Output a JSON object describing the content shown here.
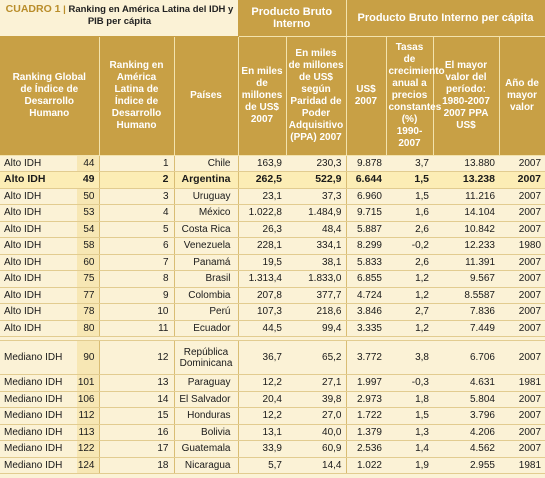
{
  "title": {
    "label": "CUADRO 1",
    "text": "Ranking en América Latina del IDH y PIB per cápita"
  },
  "headers": {
    "pib": "Producto Bruto Interno",
    "pib_pc": "Producto Bruto Interno per cápita",
    "ranking_global": "Ranking Global de Índice de Desarrollo Humano",
    "ranking_al": "Ranking en América Latina de Índice de Desarrollo Humano",
    "paises": "Países",
    "pib_millones": "En miles de millones de US$ 2007",
    "pib_ppa": "En miles de millones de US$ según Paridad de Poder Adquisitivo (PPA) 2007",
    "us2007": "US$ 2007",
    "tasas": "Tasas de crecimiento anual a precios constantes (%) 1990-2007",
    "mayor": "El mayor valor del período: 1980-2007 2007 PPA US$",
    "anio": "Año de mayor valor"
  },
  "rows_alto": [
    {
      "nivel": "Alto IDH",
      "rg": "44",
      "ral": "1",
      "pais": "Chile",
      "pib": "163,9",
      "ppa": "230,3",
      "us": "9.878",
      "tasa": "3,7",
      "mayor": "13.880",
      "anio": "2007"
    },
    {
      "nivel": "Alto IDH",
      "rg": "49",
      "ral": "2",
      "pais": "Argentina",
      "pib": "262,5",
      "ppa": "522,9",
      "us": "6.644",
      "tasa": "1,5",
      "mayor": "13.238",
      "anio": "2007",
      "highlight": true
    },
    {
      "nivel": "Alto IDH",
      "rg": "50",
      "ral": "3",
      "pais": "Uruguay",
      "pib": "23,1",
      "ppa": "37,3",
      "us": "6.960",
      "tasa": "1,5",
      "mayor": "11.216",
      "anio": "2007"
    },
    {
      "nivel": "Alto IDH",
      "rg": "53",
      "ral": "4",
      "pais": "México",
      "pib": "1.022,8",
      "ppa": "1.484,9",
      "us": "9.715",
      "tasa": "1,6",
      "mayor": "14.104",
      "anio": "2007"
    },
    {
      "nivel": "Alto IDH",
      "rg": "54",
      "ral": "5",
      "pais": "Costa Rica",
      "pib": "26,3",
      "ppa": "48,4",
      "us": "5.887",
      "tasa": "2,6",
      "mayor": "10.842",
      "anio": "2007"
    },
    {
      "nivel": "Alto IDH",
      "rg": "58",
      "ral": "6",
      "pais": "Venezuela",
      "pib": "228,1",
      "ppa": "334,1",
      "us": "8.299",
      "tasa": "-0,2",
      "mayor": "12.233",
      "anio": "1980"
    },
    {
      "nivel": "Alto IDH",
      "rg": "60",
      "ral": "7",
      "pais": "Panamá",
      "pib": "19,5",
      "ppa": "38,1",
      "us": "5.833",
      "tasa": "2,6",
      "mayor": "11.391",
      "anio": "2007"
    },
    {
      "nivel": "Alto IDH",
      "rg": "75",
      "ral": "8",
      "pais": "Brasil",
      "pib": "1.313,4",
      "ppa": "1.833,0",
      "us": "6.855",
      "tasa": "1,2",
      "mayor": "9.567",
      "anio": "2007"
    },
    {
      "nivel": "Alto IDH",
      "rg": "77",
      "ral": "9",
      "pais": "Colombia",
      "pib": "207,8",
      "ppa": "377,7",
      "us": "4.724",
      "tasa": "1,2",
      "mayor": "8.5587",
      "anio": "2007"
    },
    {
      "nivel": "Alto IDH",
      "rg": "78",
      "ral": "10",
      "pais": "Perú",
      "pib": "107,3",
      "ppa": "218,6",
      "us": "3.846",
      "tasa": "2,7",
      "mayor": "7.836",
      "anio": "2007"
    },
    {
      "nivel": "Alto IDH",
      "rg": "80",
      "ral": "11",
      "pais": "Ecuador",
      "pib": "44,5",
      "ppa": "99,4",
      "us": "3.335",
      "tasa": "1,2",
      "mayor": "7.449",
      "anio": "2007"
    }
  ],
  "rows_mediano": [
    {
      "nivel": "Mediano IDH",
      "rg": "90",
      "ral": "12",
      "pais": "República Dominicana",
      "pib": "36,7",
      "ppa": "65,2",
      "us": "3.772",
      "tasa": "3,8",
      "mayor": "6.706",
      "anio": "2007"
    },
    {
      "nivel": "Mediano IDH",
      "rg": "101",
      "ral": "13",
      "pais": "Paraguay",
      "pib": "12,2",
      "ppa": "27,1",
      "us": "1.997",
      "tasa": "-0,3",
      "mayor": "4.631",
      "anio": "1981"
    },
    {
      "nivel": "Mediano IDH",
      "rg": "106",
      "ral": "14",
      "pais": "El Salvador",
      "pib": "20,4",
      "ppa": "39,8",
      "us": "2.973",
      "tasa": "1,8",
      "mayor": "5.804",
      "anio": "2007"
    },
    {
      "nivel": "Mediano IDH",
      "rg": "112",
      "ral": "15",
      "pais": "Honduras",
      "pib": "12,2",
      "ppa": "27,0",
      "us": "1.722",
      "tasa": "1,5",
      "mayor": "3.796",
      "anio": "2007"
    },
    {
      "nivel": "Mediano IDH",
      "rg": "113",
      "ral": "16",
      "pais": "Bolivia",
      "pib": "13,1",
      "ppa": "40,0",
      "us": "1.379",
      "tasa": "1,3",
      "mayor": "4.206",
      "anio": "2007"
    },
    {
      "nivel": "Mediano IDH",
      "rg": "122",
      "ral": "17",
      "pais": "Guatemala",
      "pib": "33,9",
      "ppa": "60,9",
      "us": "2.536",
      "tasa": "1,4",
      "mayor": "4.562",
      "anio": "2007"
    },
    {
      "nivel": "Mediano IDH",
      "rg": "124",
      "ral": "18",
      "pais": "Nicaragua",
      "pib": "5,7",
      "ppa": "14,4",
      "us": "1.022",
      "tasa": "1,9",
      "mayor": "2.955",
      "anio": "1981"
    }
  ],
  "colors": {
    "header": "#c8a045",
    "background": "#fbf2d6",
    "highlight": "#fcedb5",
    "accent": "#b98d2a"
  }
}
